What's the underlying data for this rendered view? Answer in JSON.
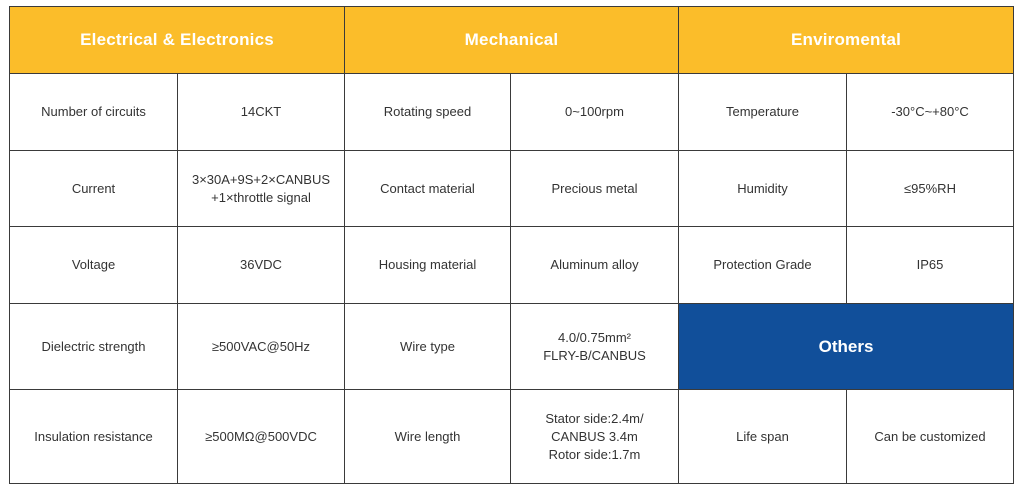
{
  "sections": {
    "electrical": "Electrical & Electronics",
    "mechanical": "Mechanical",
    "environmental": "Enviromental",
    "others": "Others"
  },
  "electrical": [
    {
      "label": "Number of circuits",
      "value": [
        "14CKT"
      ]
    },
    {
      "label": "Current",
      "value": [
        "3×30A+9S+2×CANBUS",
        "+1×throttle signal"
      ]
    },
    {
      "label": "Voltage",
      "value": [
        "36VDC"
      ]
    },
    {
      "label": "Dielectric strength",
      "value": [
        "≥500VAC@50Hz"
      ]
    },
    {
      "label": "Insulation resistance",
      "value": [
        "≥500MΩ@500VDC"
      ]
    }
  ],
  "mechanical": [
    {
      "label": "Rotating speed",
      "value": [
        "0~100rpm"
      ]
    },
    {
      "label": "Contact material",
      "value": [
        "Precious metal"
      ]
    },
    {
      "label": "Housing material",
      "value": [
        "Aluminum alloy"
      ]
    },
    {
      "label": "Wire type",
      "value": [
        "4.0/0.75mm²",
        "FLRY-B/CANBUS"
      ]
    },
    {
      "label": "Wire length",
      "value": [
        "Stator side:2.4m/",
        "CANBUS 3.4m",
        "Rotor side:1.7m"
      ]
    }
  ],
  "environmental": [
    {
      "label": "Temperature",
      "value": [
        "-30°C~+80°C"
      ]
    },
    {
      "label": "Humidity",
      "value": [
        "≤95%RH"
      ]
    },
    {
      "label": "Protection Grade",
      "value": [
        "IP65"
      ]
    }
  ],
  "others": [
    {
      "label": "Life span",
      "value": [
        "Can be customized"
      ]
    }
  ],
  "colors": {
    "header_yellow": "#fbbd2a",
    "header_blue": "#114f9a",
    "border": "#3a3a3a",
    "text": "#333333"
  }
}
